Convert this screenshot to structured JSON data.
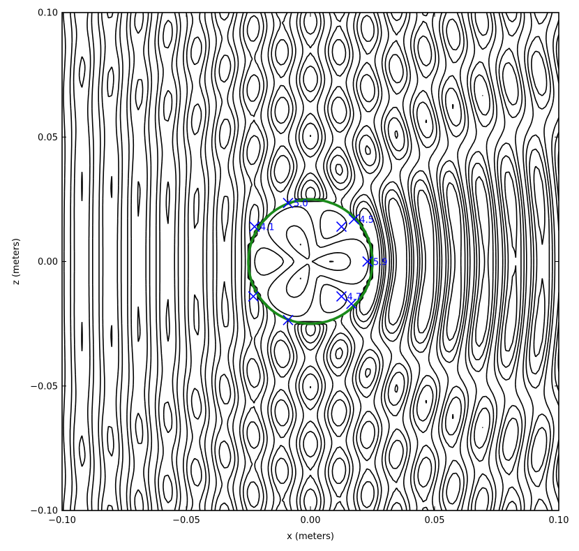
{
  "chart_data": {
    "type": "contour",
    "title": "",
    "xlabel": "x (meters)",
    "ylabel": "z (meters)",
    "xlim": [
      -0.1,
      0.1
    ],
    "ylim": [
      -0.1,
      0.1
    ],
    "x_ticks": [
      -0.1,
      -0.05,
      0.0,
      0.05,
      0.1
    ],
    "x_tick_labels": [
      "−0.10",
      "−0.05",
      "0.00",
      "0.05",
      "0.10"
    ],
    "y_ticks": [
      -0.1,
      -0.05,
      0.0,
      0.05,
      0.1
    ],
    "y_tick_labels": [
      "−0.10",
      "−0.05",
      "0.00",
      "0.05",
      "0.10"
    ],
    "grid": false,
    "contour_styles": [
      "solid (positive)",
      "dashed (negative)"
    ],
    "scatterer_circle": {
      "center": [
        0.0,
        0.0
      ],
      "radius": 0.025,
      "color": "#1a8a1a"
    },
    "marker_color": "#0000ff",
    "markers": [
      {
        "x": -0.009,
        "y": 0.0235,
        "label": "5.0"
      },
      {
        "x": -0.0225,
        "y": 0.014,
        "label": "4.1"
      },
      {
        "x": 0.0175,
        "y": 0.017,
        "label": "4.5"
      },
      {
        "x": 0.0125,
        "y": 0.014,
        "label": ""
      },
      {
        "x": 0.023,
        "y": 0.0,
        "label": "5.9"
      },
      {
        "x": 0.0125,
        "y": -0.014,
        "label": "4.7"
      },
      {
        "x": 0.0165,
        "y": -0.017,
        "label": ""
      },
      {
        "x": -0.023,
        "y": -0.014,
        "label": ""
      },
      {
        "x": -0.009,
        "y": -0.0235,
        "label": ""
      }
    ]
  }
}
